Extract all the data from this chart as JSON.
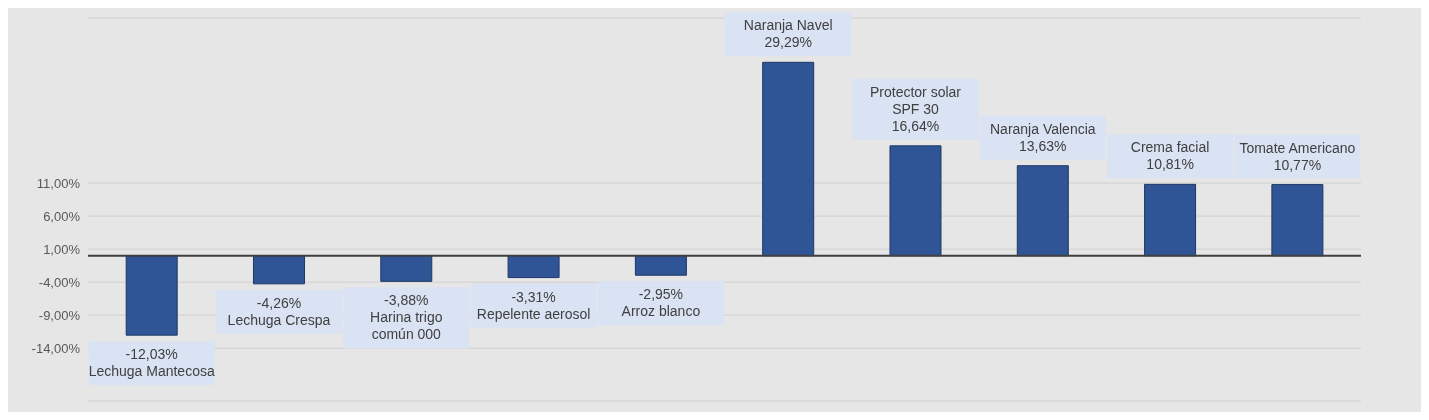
{
  "chart_data": {
    "type": "bar",
    "categories": [
      "Lechuga Mantecosa",
      "Lechuga Crespa",
      "Harina trigo común 000",
      "Repelente aerosol",
      "Arroz blanco",
      "Naranja Navel",
      "Protector solar SPF 30",
      "Naranja Valencia",
      "Crema facial",
      "Tomate Americano"
    ],
    "values": [
      -12.03,
      -4.26,
      -3.88,
      -3.31,
      -2.95,
      29.29,
      16.64,
      13.63,
      10.81,
      10.77
    ],
    "value_labels": [
      "-12,03%",
      "-4,26%",
      "-3,88%",
      "-3,31%",
      "-2,95%",
      "29,29%",
      "16,64%",
      "13,63%",
      "10,81%",
      "10,77%"
    ],
    "color": "#2f5597",
    "ylim": [
      -22,
      36
    ],
    "yticks": [
      {
        "value": -14,
        "label": "-14,00%"
      },
      {
        "value": -9,
        "label": "-9,00%"
      },
      {
        "value": -4,
        "label": "-4,00%"
      },
      {
        "value": 1,
        "label": "1,00%"
      },
      {
        "value": 6,
        "label": "6,00%"
      },
      {
        "value": 11,
        "label": "11,00%"
      }
    ],
    "ref_lines": [
      {
        "axis": "y",
        "value": 0,
        "color": "#404040"
      }
    ],
    "grid": "y",
    "tick_labels": "y"
  }
}
